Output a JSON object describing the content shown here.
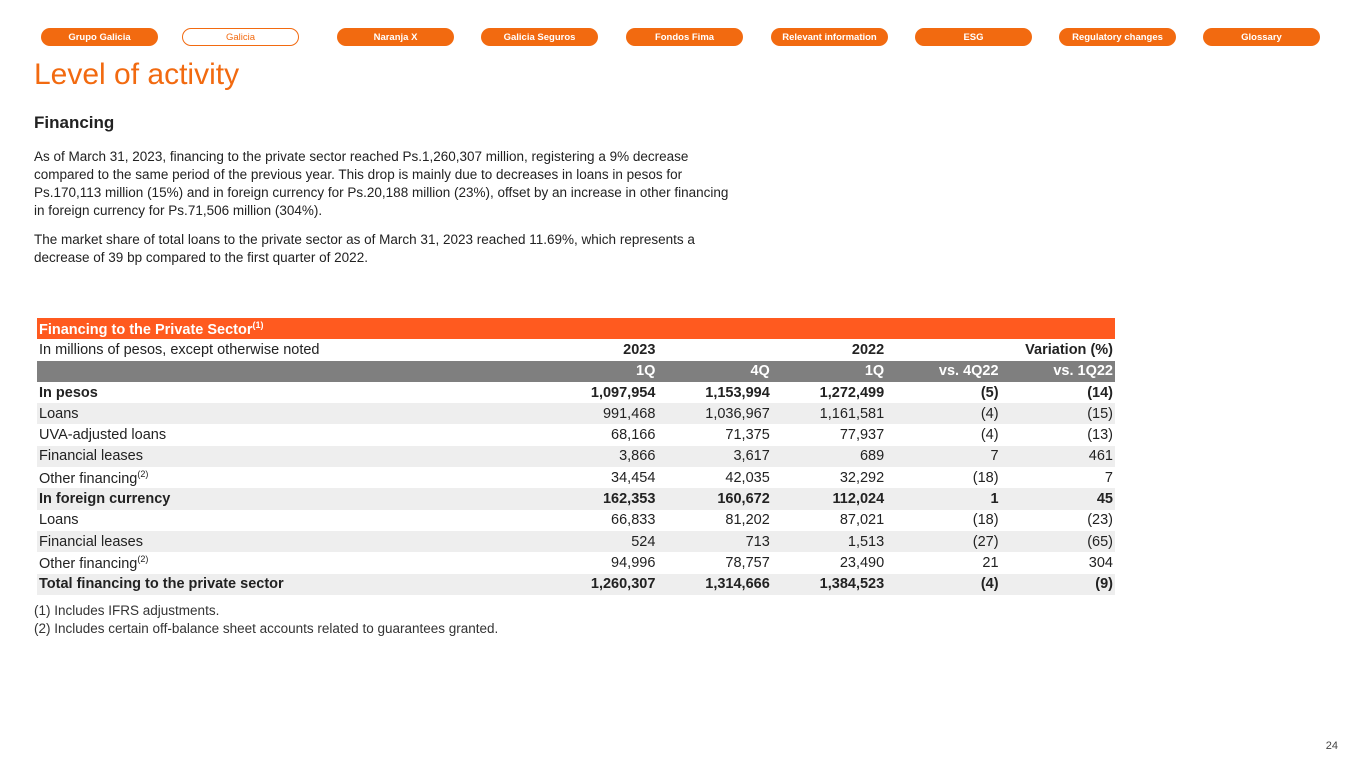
{
  "nav": [
    {
      "label": "Grupo Galicia"
    },
    {
      "label": "Galicia",
      "active": true
    },
    {
      "label": "Naranja X"
    },
    {
      "label": "Galicia Seguros"
    },
    {
      "label": "Fondos Fima"
    },
    {
      "label": "Relevant information"
    },
    {
      "label": "ESG"
    },
    {
      "label": "Regulatory changes"
    },
    {
      "label": "Glossary"
    }
  ],
  "title": "Level of activity",
  "section": "Financing",
  "paragraphs": [
    "As of March 31, 2023, financing to the private sector reached Ps.1,260,307 million, registering a 9% decrease compared to the same period of the previous year. This drop is mainly due to decreases in loans in pesos for Ps.170,113 million (15%) and in foreign currency for Ps.20,188 million (23%), offset by an increase in other financing in foreign currency for Ps.71,506 million (304%).",
    "The market share of total loans to the private sector as of March 31, 2023 reached 11.69%, which represents a decrease of 39 bp compared to the first quarter of 2022."
  ],
  "table": {
    "title": "Financing to the Private Sector",
    "title_sup": "(1)",
    "subtitle": "In millions of pesos, except otherwise noted",
    "year_2023": "2023",
    "year_2022": "2022",
    "variation": "Variation (%)",
    "columns": [
      "1Q",
      "4Q",
      "1Q",
      "vs. 4Q22",
      "vs. 1Q22"
    ],
    "rows": [
      {
        "label": "In pesos",
        "sup": "",
        "bold": true,
        "values": [
          "1,097,954",
          "1,153,994",
          "1,272,499",
          "(5)",
          "(14)"
        ]
      },
      {
        "label": "Loans",
        "sup": "",
        "values": [
          "991,468",
          "1,036,967",
          "1,161,581",
          "(4)",
          "(15)"
        ]
      },
      {
        "label": "UVA-adjusted loans",
        "sup": "",
        "values": [
          "68,166",
          "71,375",
          "77,937",
          "(4)",
          "(13)"
        ]
      },
      {
        "label": "Financial leases",
        "sup": "",
        "values": [
          "3,866",
          "3,617",
          "689",
          "7",
          "461"
        ]
      },
      {
        "label": "Other financing",
        "sup": "(2)",
        "values": [
          "34,454",
          "42,035",
          "32,292",
          "(18)",
          "7"
        ]
      },
      {
        "label": "In foreign currency",
        "sup": "",
        "bold": true,
        "values": [
          "162,353",
          "160,672",
          "112,024",
          "1",
          "45"
        ]
      },
      {
        "label": "Loans",
        "sup": "",
        "values": [
          "66,833",
          "81,202",
          "87,021",
          "(18)",
          "(23)"
        ]
      },
      {
        "label": "Financial leases",
        "sup": "",
        "values": [
          "524",
          "713",
          "1,513",
          "(27)",
          "(65)"
        ]
      },
      {
        "label": "Other financing",
        "sup": "(2)",
        "values": [
          "94,996",
          "78,757",
          "23,490",
          "21",
          "304"
        ]
      },
      {
        "label": "Total financing to the private sector",
        "sup": "",
        "bold": true,
        "values": [
          "1,260,307",
          "1,314,666",
          "1,384,523",
          "(4)",
          "(9)"
        ]
      }
    ]
  },
  "footnotes": [
    "(1) Includes IFRS adjustments.",
    "(2) Includes certain off-balance sheet accounts related to guarantees granted."
  ],
  "page_number": "24",
  "colors": {
    "accent": "#f26a10",
    "table_title": "#ff5a1f",
    "column_header": "#7f7f7f"
  }
}
